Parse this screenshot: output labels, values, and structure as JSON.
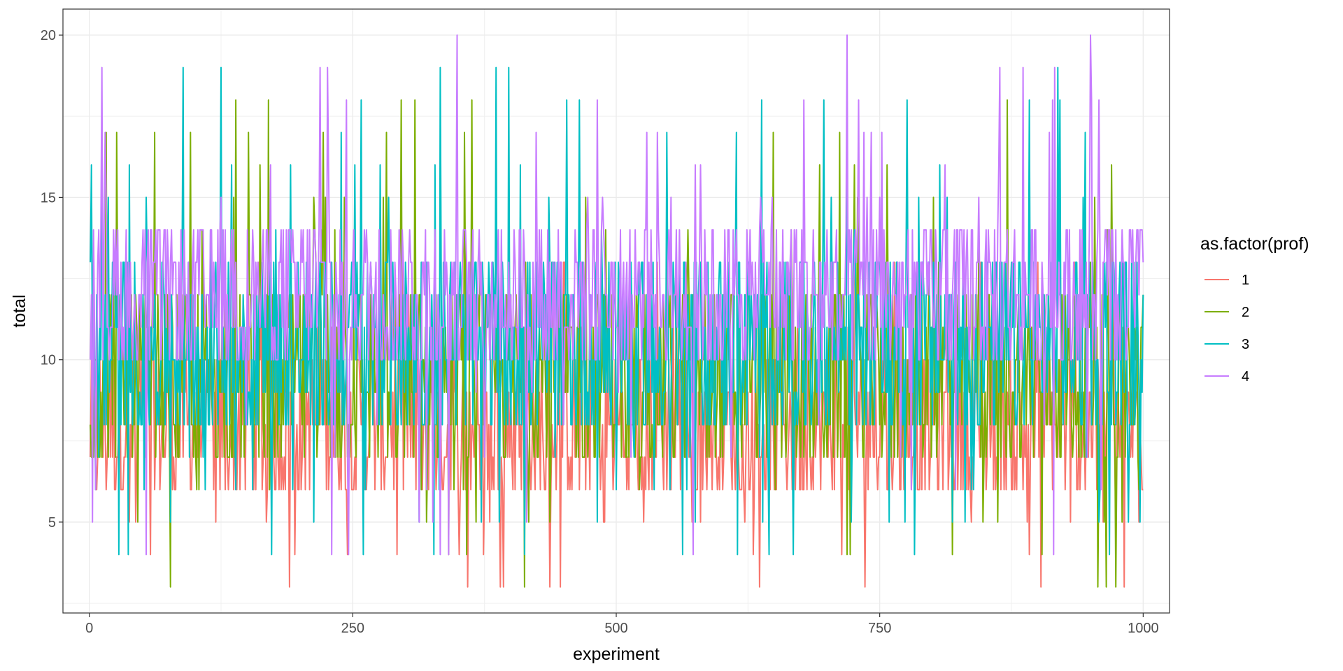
{
  "chart_data": {
    "type": "line",
    "xlabel": "experiment",
    "ylabel": "total",
    "xlim": [
      -25,
      1025
    ],
    "ylim": [
      2.2,
      20.8
    ],
    "x_ticks": [
      0,
      250,
      500,
      750,
      1000
    ],
    "x_tick_labels": [
      "0",
      "250",
      "500",
      "750",
      "1000"
    ],
    "y_ticks": [
      5,
      10,
      15,
      20
    ],
    "y_tick_labels": [
      "5",
      "10",
      "15",
      "20"
    ],
    "grid": true,
    "legend": {
      "title": "as.factor(prof)",
      "position": "right"
    },
    "x_range": [
      1,
      1000
    ],
    "series": [
      {
        "name": "1",
        "color": "#F8766D",
        "typical_range": [
          6,
          10
        ],
        "min": 3,
        "max": 13
      },
      {
        "name": "2",
        "color": "#7CAE00",
        "typical_range": [
          7,
          12
        ],
        "min": 3,
        "max": 18
      },
      {
        "name": "3",
        "color": "#00BFC4",
        "typical_range": [
          8,
          13
        ],
        "min": 4,
        "max": 19
      },
      {
        "name": "4",
        "color": "#C77CFF",
        "typical_range": [
          10,
          14
        ],
        "min": 4,
        "max": 20
      }
    ]
  }
}
